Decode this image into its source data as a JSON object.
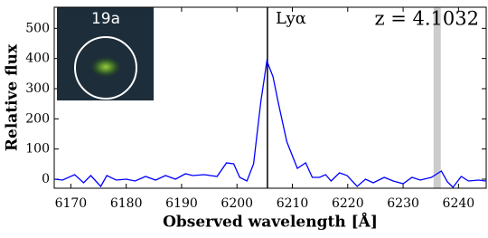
{
  "chart_data": {
    "type": "line",
    "xlabel": "Observed wavelength [Å]",
    "ylabel": "Relative flux",
    "annotations": [
      "Lyα",
      "z = 4.1032",
      "19a"
    ],
    "x": [
      6167.1,
      6168.5,
      6170.7,
      6172.3,
      6173.6,
      6175.4,
      6176.5,
      6178.2,
      6180.0,
      6181.6,
      6183.5,
      6185.3,
      6187.1,
      6188.9,
      6190.7,
      6192.0,
      6194.1,
      6196.4,
      6198.1,
      6199.4,
      6200.5,
      6201.8,
      6203.0,
      6204.3,
      6205.4,
      6206.5,
      6207.5,
      6209.0,
      6210.9,
      6212.4,
      6213.6,
      6214.9,
      6216.0,
      6217.0,
      6218.5,
      6219.9,
      6221.7,
      6223.2,
      6224.6,
      6226.6,
      6228.2,
      6230.0,
      6231.6,
      6233.1,
      6235.1,
      6236.9,
      6238.0,
      6239.0,
      6240.5,
      6241.8,
      6243.6,
      6244.9
    ],
    "values": [
      0,
      -3,
      15,
      -12,
      12,
      -24,
      12,
      -3,
      0,
      -6,
      9,
      -3,
      12,
      0,
      18,
      12,
      15,
      9,
      54,
      51,
      6,
      -6,
      51,
      256,
      392,
      340,
      250,
      124,
      36,
      54,
      6,
      6,
      15,
      -6,
      21,
      12,
      -24,
      0,
      -12,
      6,
      -6,
      -15,
      6,
      -3,
      6,
      27,
      -9,
      -27,
      9,
      -6,
      -3,
      -6
    ],
    "color": "#0000ff",
    "vlines": [
      6205.5
    ],
    "bands": [
      [
        6235.5,
        6236.8
      ]
    ],
    "xlim": [
      6167,
      6245
    ],
    "ylim": [
      -30,
      570
    ],
    "xticks": [
      6170,
      6180,
      6190,
      6200,
      6210,
      6220,
      6230,
      6240
    ],
    "yticks": [
      0,
      100,
      200,
      300,
      400,
      500
    ],
    "grid": false
  }
}
